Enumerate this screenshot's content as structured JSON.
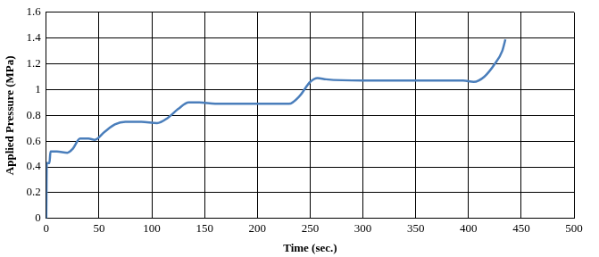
{
  "chart_data": {
    "type": "line",
    "x_label": "Time (sec.)",
    "y_label": "Applied Pressure (MPa)",
    "x": [
      0,
      0.5,
      3,
      4,
      10,
      20,
      25,
      32,
      40,
      46,
      55,
      65,
      75,
      90,
      105,
      115,
      125,
      135,
      145,
      160,
      200,
      215,
      230,
      240,
      250,
      257,
      265,
      300,
      350,
      395,
      405,
      415,
      425,
      432,
      435
    ],
    "values": [
      0,
      0.43,
      0.43,
      0.52,
      0.52,
      0.51,
      0.54,
      0.62,
      0.62,
      0.61,
      0.67,
      0.73,
      0.75,
      0.75,
      0.74,
      0.78,
      0.85,
      0.9,
      0.9,
      0.89,
      0.89,
      0.89,
      0.89,
      0.95,
      1.06,
      1.09,
      1.08,
      1.07,
      1.07,
      1.07,
      1.06,
      1.1,
      1.2,
      1.3,
      1.39
    ],
    "color": "#4a7ebb",
    "xlim": [
      0,
      500
    ],
    "xticks": [
      0,
      50,
      100,
      150,
      200,
      250,
      300,
      350,
      400,
      450,
      500
    ],
    "ylim": [
      0,
      1.6
    ],
    "yticks": [
      0,
      0.2,
      0.4,
      0.6,
      0.8,
      1,
      1.2,
      1.4,
      1.6
    ],
    "grid": true
  }
}
